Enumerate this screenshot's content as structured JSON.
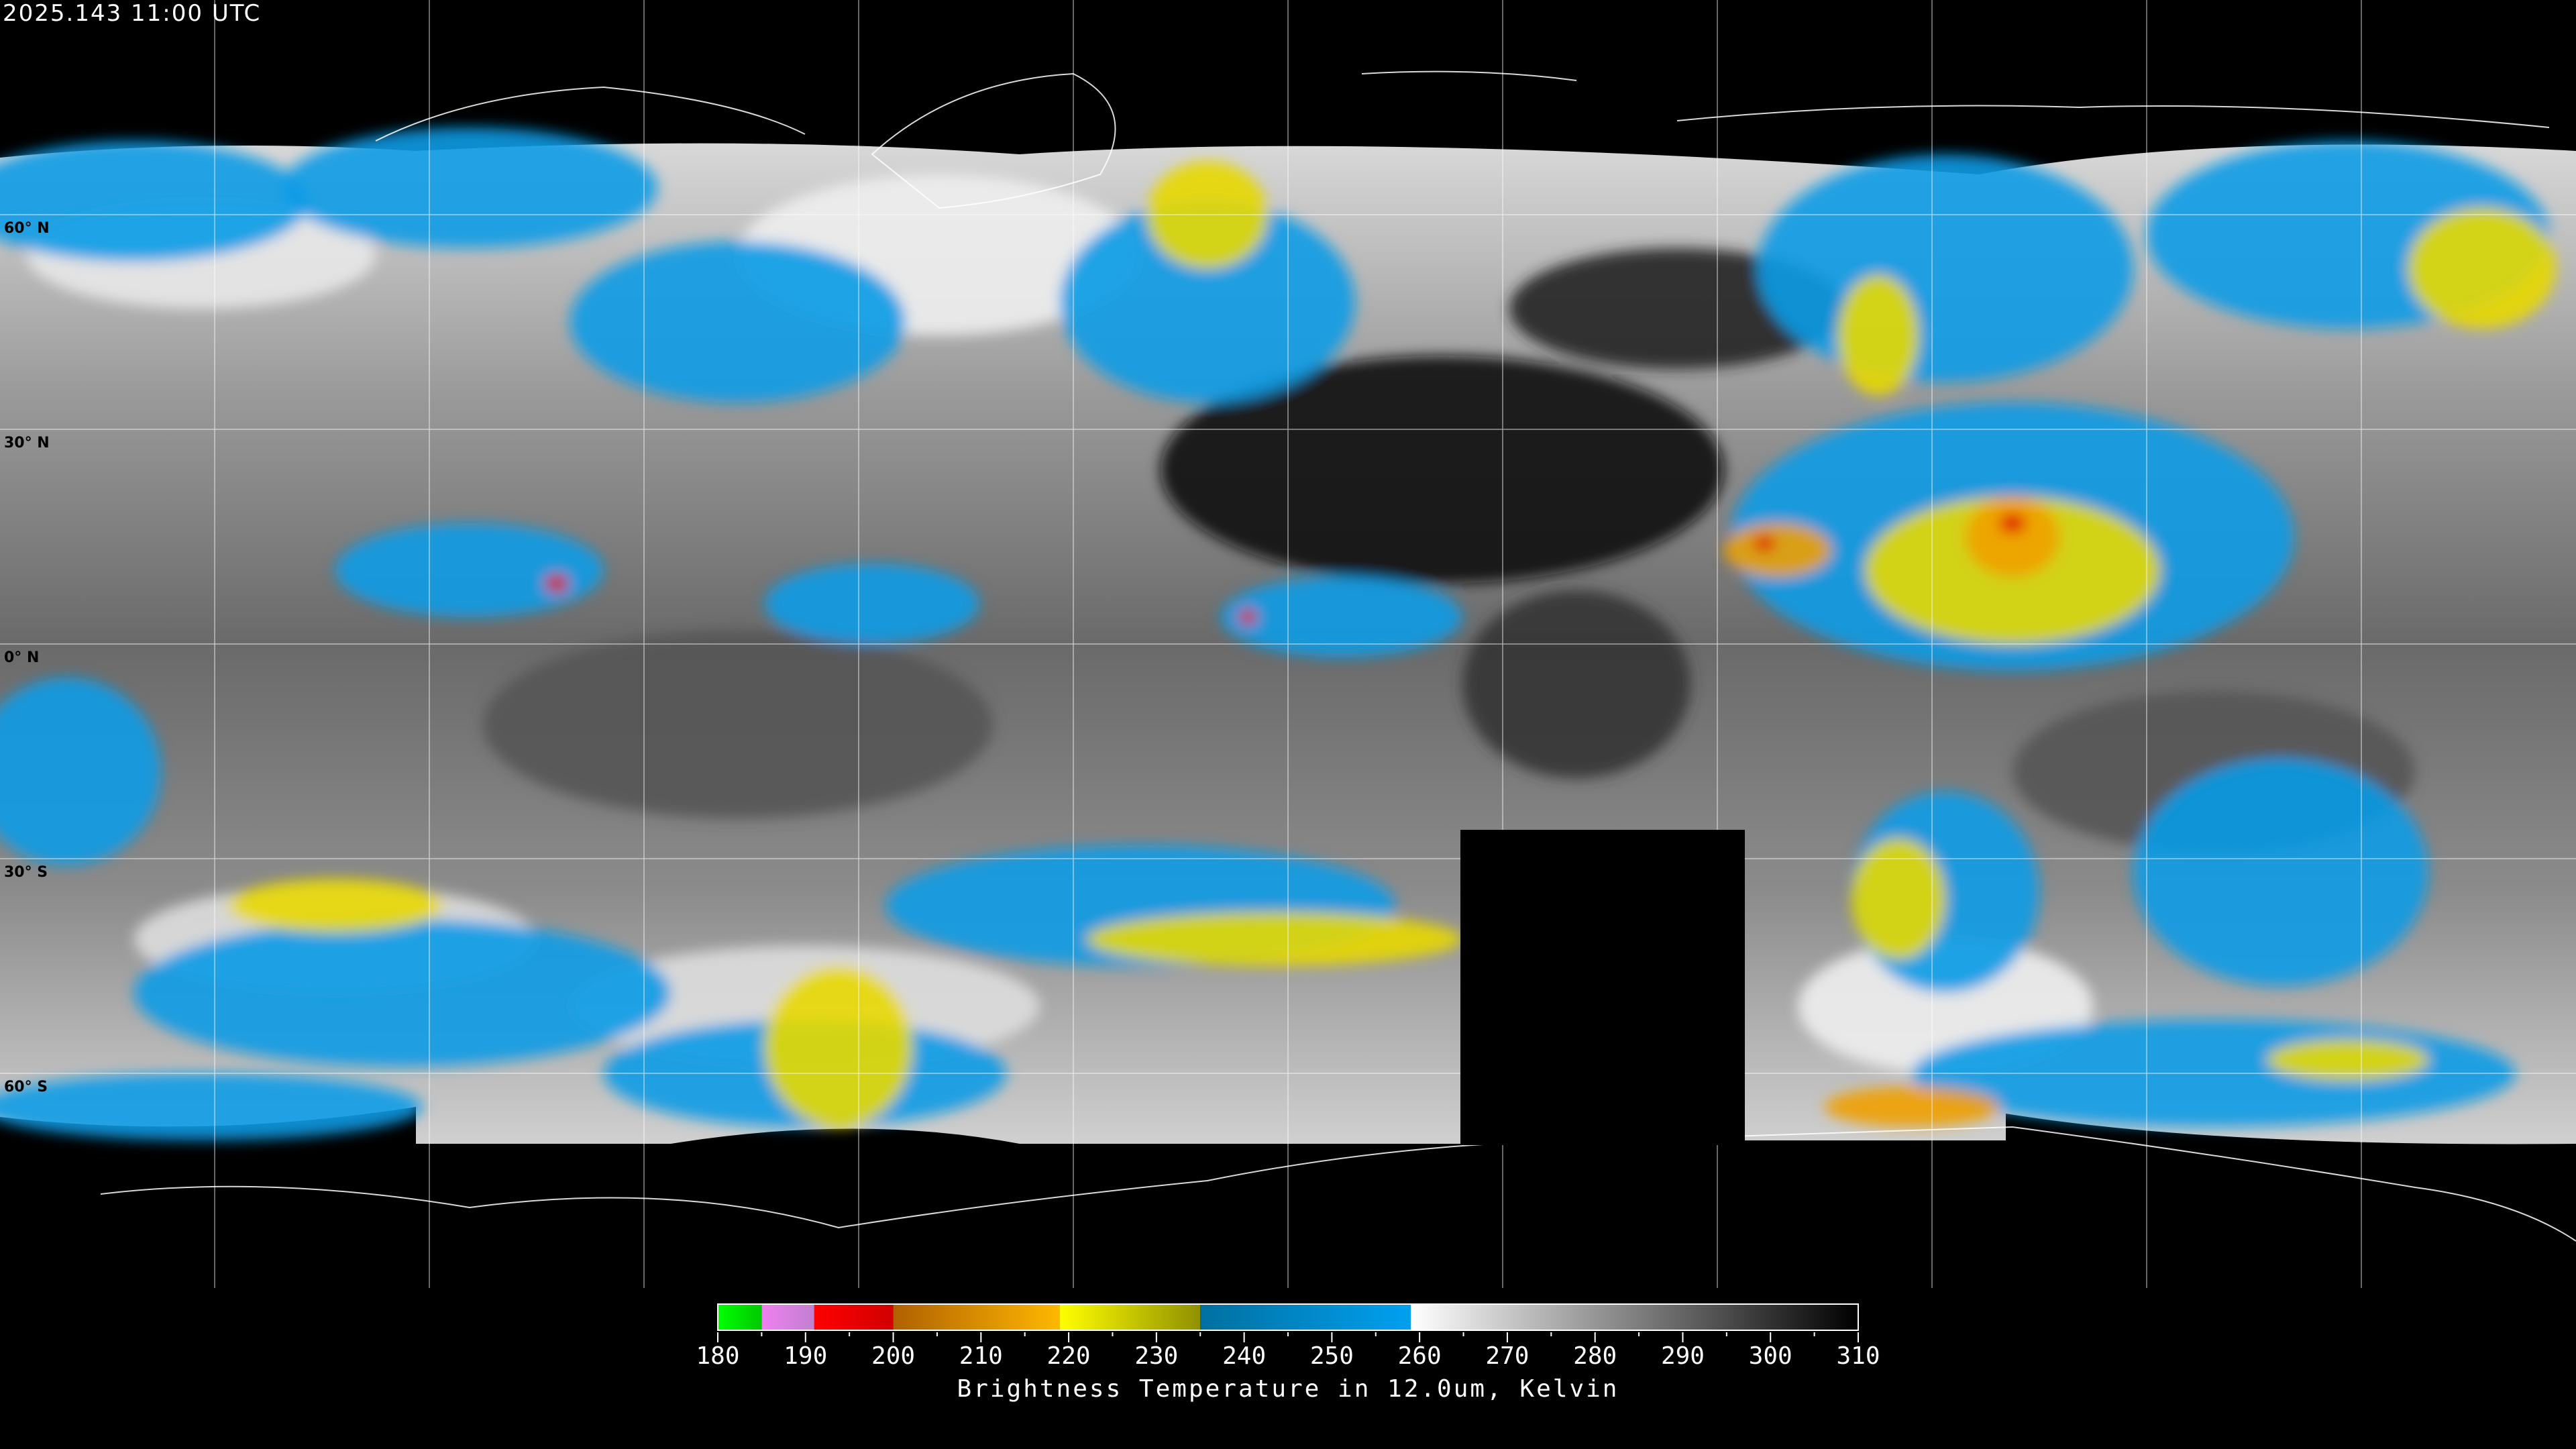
{
  "header": {
    "timestamp": "2025.143 11:00 UTC"
  },
  "map": {
    "projection": "equirectangular",
    "latitude_labels": [
      "60° N",
      "30° N",
      "0° N",
      "30° S",
      "60° S"
    ],
    "latitude_values": [
      60,
      30,
      0,
      -30,
      -60
    ],
    "longitude_grid_spacing_deg": 30
  },
  "colorbar": {
    "label": "Brightness Temperature in 12.0um, Kelvin",
    "min": 180,
    "max": 310,
    "tick_labels": [
      "180",
      "190",
      "200",
      "210",
      "220",
      "230",
      "240",
      "250",
      "260",
      "270",
      "280",
      "290",
      "300",
      "310"
    ],
    "segments": [
      {
        "from": 180,
        "to": 185,
        "colors": [
          "#00ff00",
          "#00c800"
        ]
      },
      {
        "from": 185,
        "to": 191,
        "colors": [
          "#f080f0",
          "#c080d0"
        ]
      },
      {
        "from": 191,
        "to": 200,
        "colors": [
          "#ff0000",
          "#d00000"
        ]
      },
      {
        "from": 200,
        "to": 219,
        "colors": [
          "#b06000",
          "#ffb800"
        ]
      },
      {
        "from": 219,
        "to": 235,
        "colors": [
          "#ffff00",
          "#909000"
        ]
      },
      {
        "from": 235,
        "to": 259,
        "colors": [
          "#0070a0",
          "#00a0f0"
        ]
      },
      {
        "from": 259,
        "to": 310,
        "colors": [
          "#ffffff",
          "#000000"
        ]
      }
    ]
  }
}
